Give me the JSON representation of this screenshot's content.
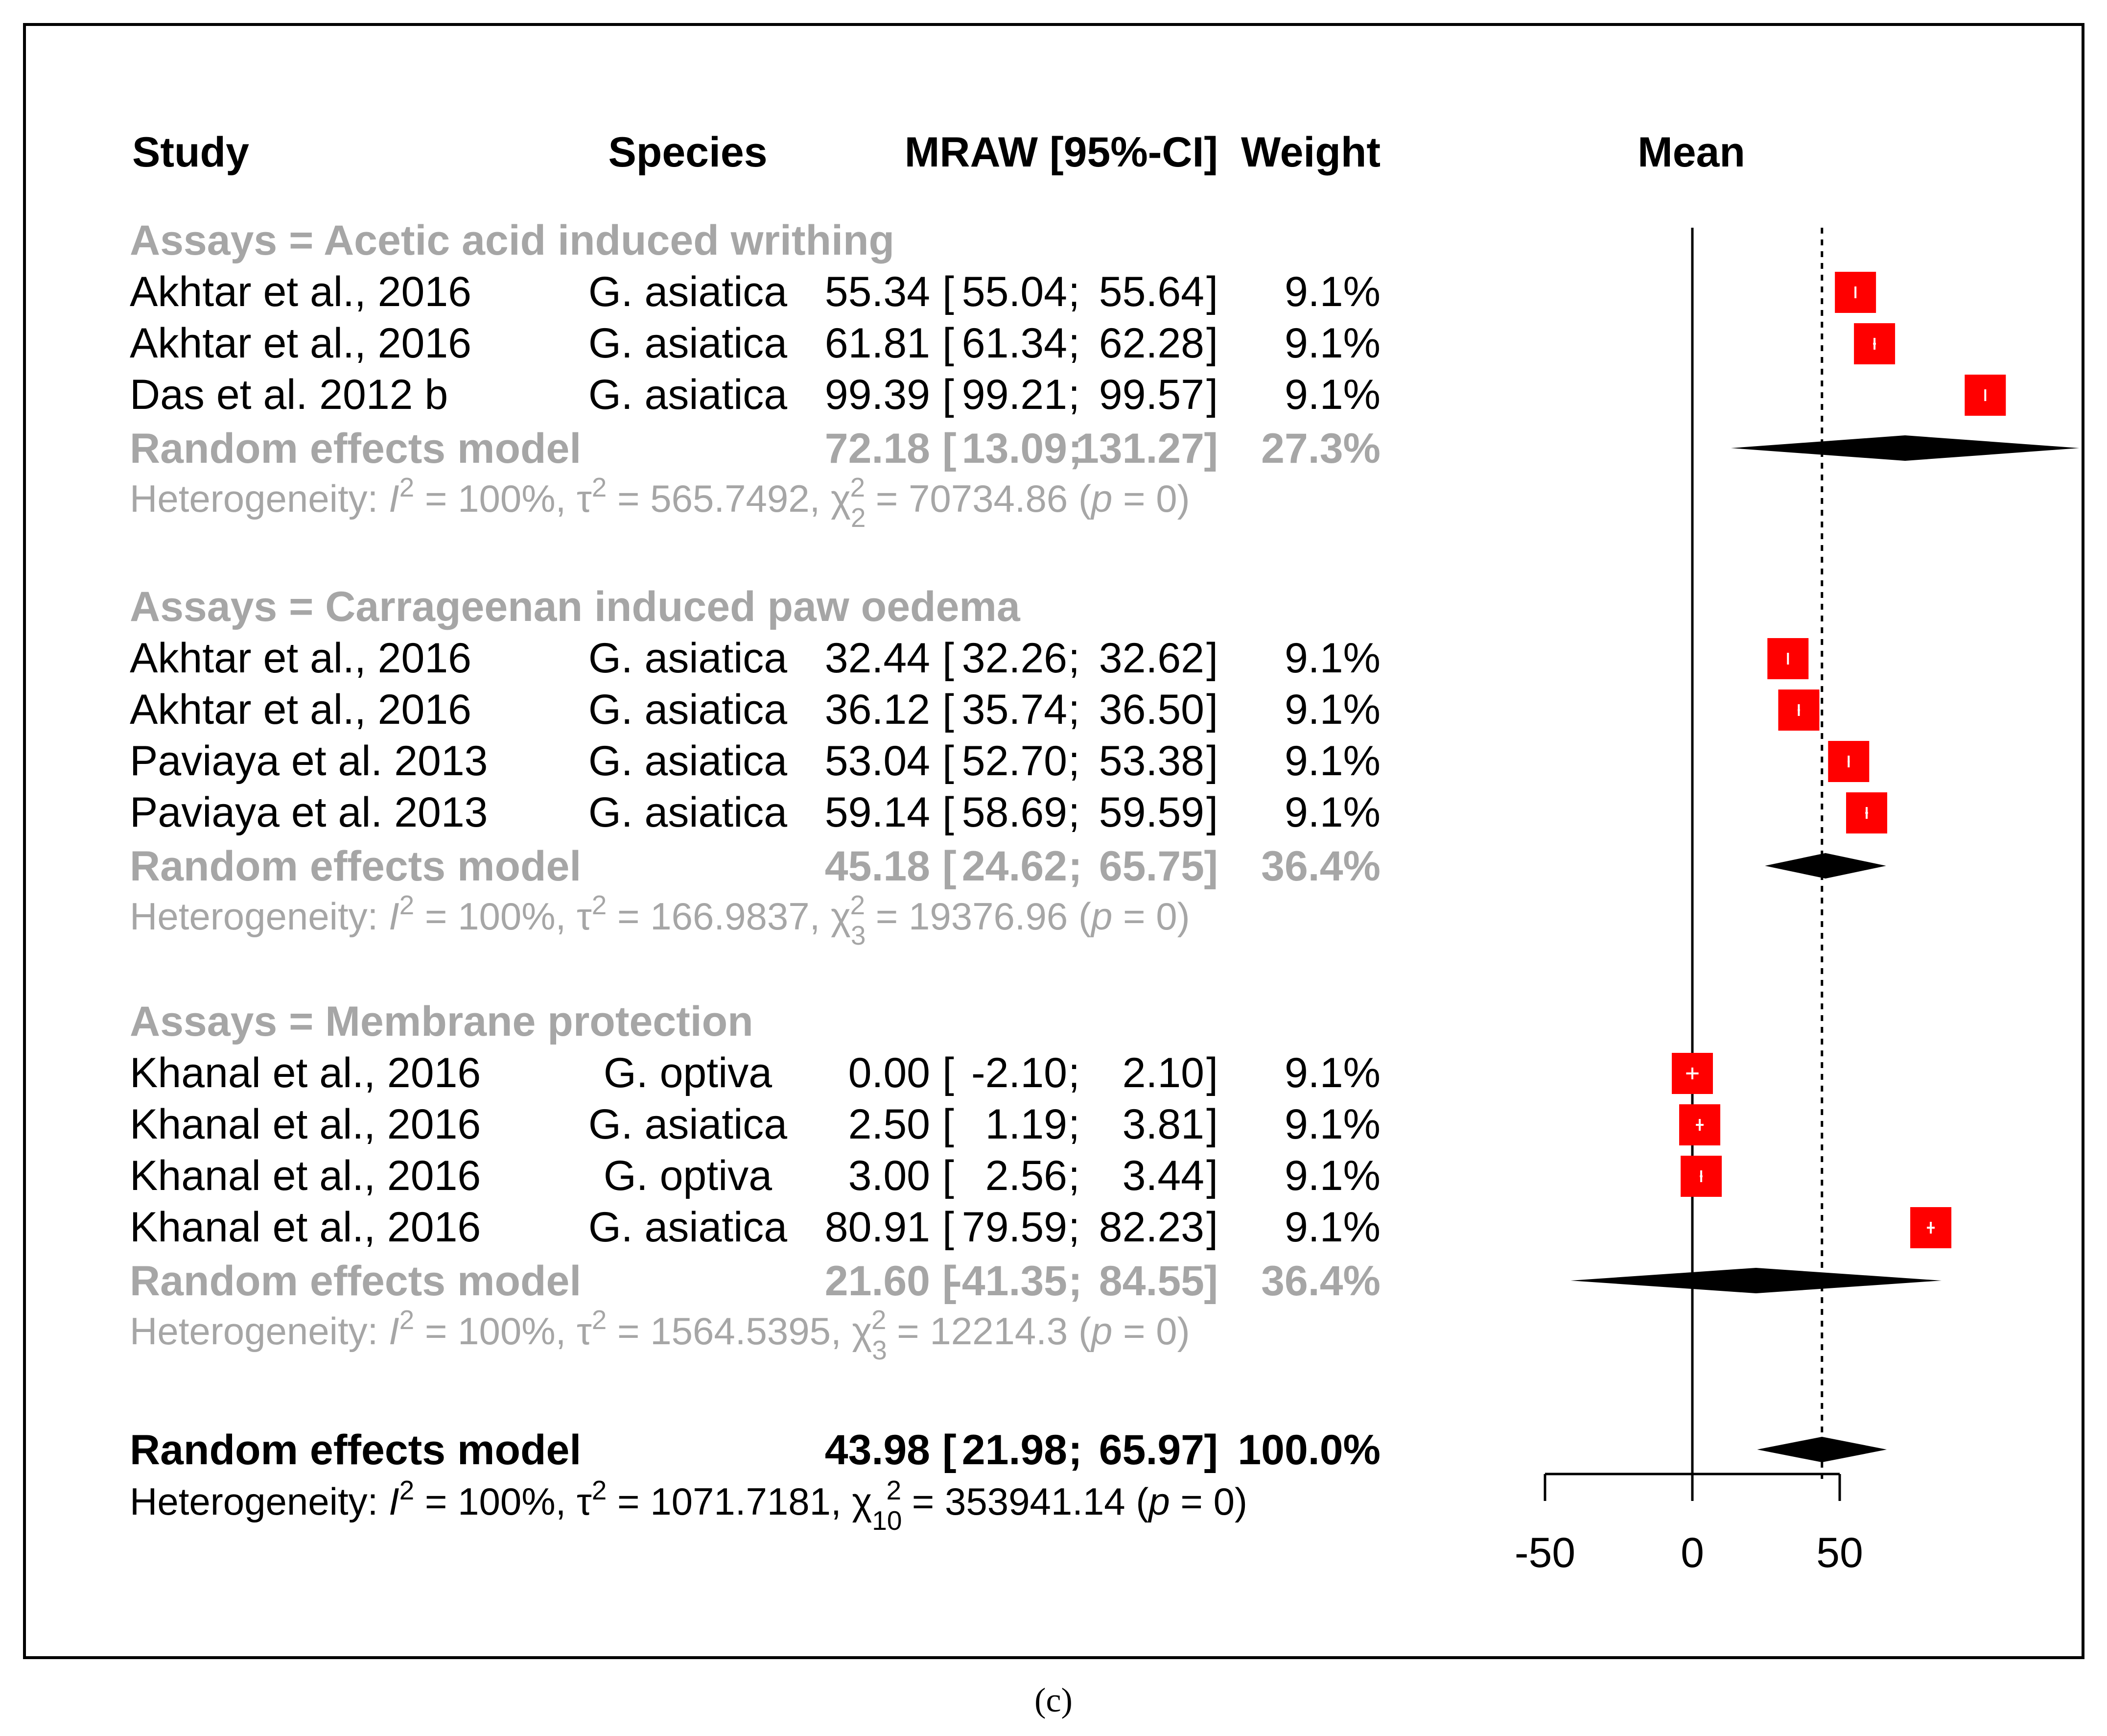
{
  "headers": {
    "study": "Study",
    "species": "Species",
    "mraw": "MRAW [95%-CI]",
    "weight": "Weight",
    "mean": "Mean"
  },
  "caption": "(c)",
  "axis_tick_labels": [
    "-50",
    "0",
    "50"
  ],
  "colors": {
    "study_square": "#ff0000",
    "diamond": "#000000",
    "subgroup_text": "#a6a6a6",
    "frame": "#000000"
  },
  "groups": [
    {
      "title": "Assays = Acetic acid induced writhing",
      "studies": [
        {
          "study": "Akhtar et al., 2016",
          "species": "G. asiatica",
          "est": "55.34",
          "ci_lo": "55.04",
          "ci_hi": "55.64",
          "weight": "9.1%"
        },
        {
          "study": "Akhtar et al., 2016",
          "species": "G. asiatica",
          "est": "61.81",
          "ci_lo": "61.34",
          "ci_hi": "62.28",
          "weight": "9.1%"
        },
        {
          "study": "Das et al. 2012 b",
          "species": "G. asiatica",
          "est": "99.39",
          "ci_lo": "99.21",
          "ci_hi": "99.57",
          "weight": "9.1%"
        }
      ],
      "model": {
        "label": "Random effects model",
        "est": "72.18",
        "ci_lo": "13.09",
        "ci_hi": "131.27",
        "weight": "27.3%"
      },
      "heterogeneity": {
        "prefix": "Heterogeneity: ",
        "i2": "100%",
        "tau2": "565.7492",
        "chi_df": "2",
        "chi2": "70734.86",
        "p": "0"
      }
    },
    {
      "title": "Assays = Carrageenan induced paw oedema",
      "studies": [
        {
          "study": "Akhtar et al., 2016",
          "species": "G. asiatica",
          "est": "32.44",
          "ci_lo": "32.26",
          "ci_hi": "32.62",
          "weight": "9.1%"
        },
        {
          "study": "Akhtar et al., 2016",
          "species": "G. asiatica",
          "est": "36.12",
          "ci_lo": "35.74",
          "ci_hi": "36.50",
          "weight": "9.1%"
        },
        {
          "study": "Paviaya et al. 2013",
          "species": "G. asiatica",
          "est": "53.04",
          "ci_lo": "52.70",
          "ci_hi": "53.38",
          "weight": "9.1%"
        },
        {
          "study": "Paviaya et al. 2013",
          "species": "G. asiatica",
          "est": "59.14",
          "ci_lo": "58.69",
          "ci_hi": "59.59",
          "weight": "9.1%"
        }
      ],
      "model": {
        "label": "Random effects model",
        "est": "45.18",
        "ci_lo": "24.62",
        "ci_hi": "65.75",
        "weight": "36.4%"
      },
      "heterogeneity": {
        "prefix": "Heterogeneity: ",
        "i2": "100%",
        "tau2": "166.9837",
        "chi_df": "3",
        "chi2": "19376.96",
        "p": "0"
      }
    },
    {
      "title": "Assays = Membrane protection",
      "studies": [
        {
          "study": "Khanal et al., 2016",
          "species": "G. optiva",
          "est": "0.00",
          "ci_lo": "-2.10",
          "ci_hi": "2.10",
          "weight": "9.1%"
        },
        {
          "study": "Khanal et al., 2016",
          "species": "G. asiatica",
          "est": "2.50",
          "ci_lo": "1.19",
          "ci_hi": "3.81",
          "weight": "9.1%"
        },
        {
          "study": "Khanal et al., 2016",
          "species": "G. optiva",
          "est": "3.00",
          "ci_lo": "2.56",
          "ci_hi": "3.44",
          "weight": "9.1%"
        },
        {
          "study": "Khanal et al., 2016",
          "species": "G. asiatica",
          "est": "80.91",
          "ci_lo": "79.59",
          "ci_hi": "82.23",
          "weight": "9.1%"
        }
      ],
      "model": {
        "label": "Random effects model",
        "est": "21.60",
        "ci_lo": "-41.35",
        "ci_hi": "84.55",
        "weight": "36.4%"
      },
      "heterogeneity": {
        "prefix": "Heterogeneity: ",
        "i2": "100%",
        "tau2": "1564.5395",
        "chi_df": "3",
        "chi2": "12214.3",
        "p": "0"
      }
    }
  ],
  "overall": {
    "label": "Random effects model",
    "est": "43.98",
    "ci_lo": "21.98",
    "ci_hi": "65.97",
    "weight": "100.0%",
    "heterogeneity": {
      "prefix": "Heterogeneity: ",
      "i2": "100%",
      "tau2": "1071.7181",
      "chi_df": "10",
      "chi2": "353941.14",
      "p": "0"
    }
  },
  "chart_data": {
    "type": "forest",
    "axis_label": "Mean",
    "xlim": [
      -50,
      131.27
    ],
    "ticks": [
      -50,
      0,
      50
    ],
    "null_line": 0,
    "overall_reference_line": 43.98,
    "groups": [
      {
        "name": "Acetic acid induced writhing",
        "points": [
          {
            "est": 55.34,
            "lo": 55.04,
            "hi": 55.64
          },
          {
            "est": 61.81,
            "lo": 61.34,
            "hi": 62.28
          },
          {
            "est": 99.39,
            "lo": 99.21,
            "hi": 99.57
          }
        ],
        "pooled": {
          "est": 72.18,
          "lo": 13.09,
          "hi": 131.27
        }
      },
      {
        "name": "Carrageenan induced paw oedema",
        "points": [
          {
            "est": 32.44,
            "lo": 32.26,
            "hi": 32.62
          },
          {
            "est": 36.12,
            "lo": 35.74,
            "hi": 36.5
          },
          {
            "est": 53.04,
            "lo": 52.7,
            "hi": 53.38
          },
          {
            "est": 59.14,
            "lo": 58.69,
            "hi": 59.59
          }
        ],
        "pooled": {
          "est": 45.18,
          "lo": 24.62,
          "hi": 65.75
        }
      },
      {
        "name": "Membrane protection",
        "points": [
          {
            "est": 0.0,
            "lo": -2.1,
            "hi": 2.1
          },
          {
            "est": 2.5,
            "lo": 1.19,
            "hi": 3.81
          },
          {
            "est": 3.0,
            "lo": 2.56,
            "hi": 3.44
          },
          {
            "est": 80.91,
            "lo": 79.59,
            "hi": 82.23
          }
        ],
        "pooled": {
          "est": 21.6,
          "lo": -41.35,
          "hi": 84.55
        }
      }
    ],
    "overall": {
      "est": 43.98,
      "lo": 21.98,
      "hi": 65.97
    }
  }
}
